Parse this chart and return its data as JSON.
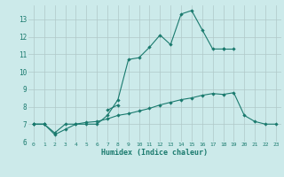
{
  "xlabel": "Humidex (Indice chaleur)",
  "background_color": "#cceaea",
  "line_color": "#1a7a6e",
  "grid_color": "#b0c8c8",
  "x_values": [
    0,
    1,
    2,
    3,
    4,
    5,
    6,
    7,
    8,
    9,
    10,
    11,
    12,
    13,
    14,
    15,
    16,
    17,
    18,
    19,
    20,
    21,
    22,
    23
  ],
  "line1_y": [
    7.0,
    7.0,
    6.5,
    7.0,
    7.0,
    7.0,
    7.0,
    7.5,
    8.4,
    10.7,
    10.8,
    11.4,
    12.1,
    11.55,
    13.3,
    13.5,
    12.4,
    11.3,
    11.3,
    null,
    null,
    null,
    null,
    null
  ],
  "line2_y": [
    7.0,
    7.0,
    null,
    null,
    null,
    null,
    null,
    7.8,
    8.1,
    null,
    null,
    null,
    null,
    null,
    null,
    null,
    null,
    null,
    11.3,
    11.3,
    null,
    null,
    null,
    null
  ],
  "line3_y": [
    7.0,
    7.0,
    6.4,
    6.7,
    7.0,
    7.1,
    7.15,
    7.3,
    7.5,
    7.6,
    7.75,
    7.9,
    8.1,
    8.25,
    8.4,
    8.5,
    8.65,
    8.75,
    8.7,
    8.8,
    7.5,
    7.15,
    7.0,
    7.0
  ],
  "ylim": [
    6.0,
    13.8
  ],
  "xlim": [
    -0.5,
    23.5
  ],
  "yticks": [
    6,
    7,
    8,
    9,
    10,
    11,
    12,
    13
  ],
  "xticks": [
    0,
    1,
    2,
    3,
    4,
    5,
    6,
    7,
    8,
    9,
    10,
    11,
    12,
    13,
    14,
    15,
    16,
    17,
    18,
    19,
    20,
    21,
    22,
    23
  ],
  "figw": 3.2,
  "figh": 2.0,
  "dpi": 100
}
